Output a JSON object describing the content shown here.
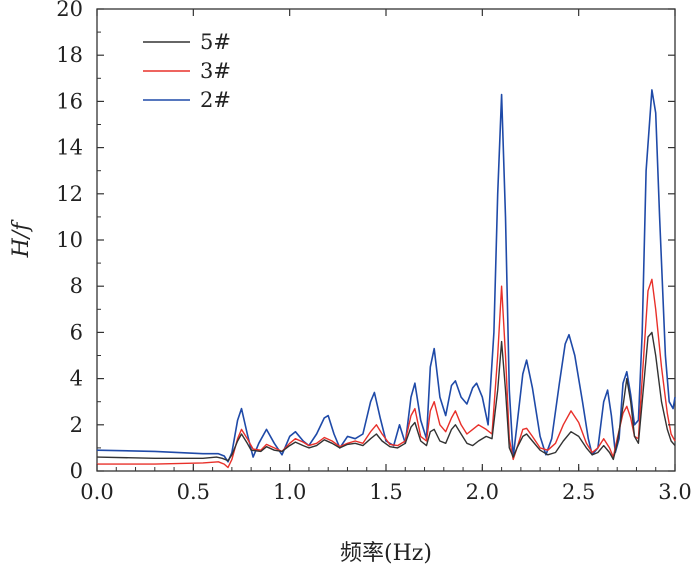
{
  "chart_data": {
    "type": "line",
    "xlabel": "频率(Hz)",
    "ylabel": "H/f",
    "xlim": [
      0,
      3.0
    ],
    "ylim": [
      0,
      20
    ],
    "xticks": [
      "0.0",
      "0.5",
      "1.0",
      "1.5",
      "2.0",
      "2.5",
      "3.0"
    ],
    "yticks": [
      "0",
      "2",
      "4",
      "6",
      "8",
      "10",
      "12",
      "14",
      "16",
      "18",
      "20"
    ],
    "grid": false,
    "legend_position": "top-left",
    "series": [
      {
        "name": "5#",
        "color": "#333333",
        "points": [
          [
            0.0,
            0.6
          ],
          [
            0.3,
            0.55
          ],
          [
            0.55,
            0.55
          ],
          [
            0.62,
            0.6
          ],
          [
            0.65,
            0.55
          ],
          [
            0.68,
            0.45
          ],
          [
            0.7,
            0.7
          ],
          [
            0.73,
            1.3
          ],
          [
            0.75,
            1.6
          ],
          [
            0.78,
            1.2
          ],
          [
            0.8,
            0.9
          ],
          [
            0.85,
            0.85
          ],
          [
            0.88,
            1.05
          ],
          [
            0.92,
            0.9
          ],
          [
            0.96,
            0.85
          ],
          [
            1.0,
            1.1
          ],
          [
            1.03,
            1.25
          ],
          [
            1.07,
            1.1
          ],
          [
            1.1,
            1.0
          ],
          [
            1.14,
            1.1
          ],
          [
            1.18,
            1.35
          ],
          [
            1.22,
            1.2
          ],
          [
            1.26,
            1.0
          ],
          [
            1.3,
            1.15
          ],
          [
            1.34,
            1.2
          ],
          [
            1.38,
            1.1
          ],
          [
            1.42,
            1.4
          ],
          [
            1.45,
            1.6
          ],
          [
            1.48,
            1.3
          ],
          [
            1.52,
            1.05
          ],
          [
            1.56,
            1.0
          ],
          [
            1.6,
            1.2
          ],
          [
            1.63,
            1.9
          ],
          [
            1.65,
            2.1
          ],
          [
            1.68,
            1.3
          ],
          [
            1.71,
            1.1
          ],
          [
            1.73,
            1.7
          ],
          [
            1.75,
            1.8
          ],
          [
            1.78,
            1.3
          ],
          [
            1.81,
            1.2
          ],
          [
            1.84,
            1.8
          ],
          [
            1.86,
            2.0
          ],
          [
            1.89,
            1.6
          ],
          [
            1.92,
            1.2
          ],
          [
            1.95,
            1.1
          ],
          [
            1.98,
            1.3
          ],
          [
            2.02,
            1.5
          ],
          [
            2.05,
            1.4
          ],
          [
            2.08,
            3.5
          ],
          [
            2.1,
            5.6
          ],
          [
            2.12,
            3.5
          ],
          [
            2.14,
            1.0
          ],
          [
            2.16,
            0.6
          ],
          [
            2.18,
            1.0
          ],
          [
            2.21,
            1.5
          ],
          [
            2.23,
            1.6
          ],
          [
            2.26,
            1.3
          ],
          [
            2.3,
            0.9
          ],
          [
            2.34,
            0.7
          ],
          [
            2.38,
            0.8
          ],
          [
            2.42,
            1.3
          ],
          [
            2.46,
            1.7
          ],
          [
            2.5,
            1.5
          ],
          [
            2.54,
            1.0
          ],
          [
            2.57,
            0.7
          ],
          [
            2.6,
            0.8
          ],
          [
            2.63,
            1.1
          ],
          [
            2.66,
            0.8
          ],
          [
            2.68,
            0.5
          ],
          [
            2.7,
            1.2
          ],
          [
            2.73,
            2.8
          ],
          [
            2.75,
            4.0
          ],
          [
            2.77,
            3.0
          ],
          [
            2.79,
            1.5
          ],
          [
            2.81,
            1.2
          ],
          [
            2.83,
            3.0
          ],
          [
            2.86,
            5.8
          ],
          [
            2.88,
            6.0
          ],
          [
            2.9,
            5.0
          ],
          [
            2.93,
            3.0
          ],
          [
            2.96,
            1.8
          ],
          [
            2.98,
            1.3
          ],
          [
            3.0,
            1.1
          ]
        ]
      },
      {
        "name": "3#",
        "color": "#e8302a",
        "points": [
          [
            0.0,
            0.3
          ],
          [
            0.3,
            0.3
          ],
          [
            0.55,
            0.35
          ],
          [
            0.63,
            0.4
          ],
          [
            0.66,
            0.3
          ],
          [
            0.68,
            0.15
          ],
          [
            0.7,
            0.5
          ],
          [
            0.73,
            1.4
          ],
          [
            0.75,
            1.8
          ],
          [
            0.78,
            1.4
          ],
          [
            0.81,
            0.95
          ],
          [
            0.85,
            0.9
          ],
          [
            0.88,
            1.15
          ],
          [
            0.92,
            1.0
          ],
          [
            0.96,
            0.85
          ],
          [
            1.0,
            1.2
          ],
          [
            1.03,
            1.4
          ],
          [
            1.07,
            1.25
          ],
          [
            1.1,
            1.1
          ],
          [
            1.14,
            1.2
          ],
          [
            1.18,
            1.45
          ],
          [
            1.22,
            1.3
          ],
          [
            1.26,
            1.05
          ],
          [
            1.3,
            1.2
          ],
          [
            1.34,
            1.3
          ],
          [
            1.38,
            1.2
          ],
          [
            1.42,
            1.7
          ],
          [
            1.45,
            2.0
          ],
          [
            1.48,
            1.6
          ],
          [
            1.52,
            1.15
          ],
          [
            1.56,
            1.1
          ],
          [
            1.6,
            1.3
          ],
          [
            1.63,
            2.4
          ],
          [
            1.65,
            2.7
          ],
          [
            1.68,
            1.5
          ],
          [
            1.71,
            1.3
          ],
          [
            1.73,
            2.6
          ],
          [
            1.75,
            3.0
          ],
          [
            1.78,
            2.0
          ],
          [
            1.81,
            1.7
          ],
          [
            1.84,
            2.3
          ],
          [
            1.86,
            2.6
          ],
          [
            1.89,
            2.0
          ],
          [
            1.92,
            1.6
          ],
          [
            1.95,
            1.8
          ],
          [
            1.98,
            2.0
          ],
          [
            2.02,
            1.8
          ],
          [
            2.05,
            1.6
          ],
          [
            2.08,
            5.0
          ],
          [
            2.1,
            8.0
          ],
          [
            2.12,
            5.0
          ],
          [
            2.14,
            1.4
          ],
          [
            2.16,
            0.5
          ],
          [
            2.18,
            1.0
          ],
          [
            2.21,
            1.8
          ],
          [
            2.23,
            1.85
          ],
          [
            2.26,
            1.5
          ],
          [
            2.3,
            1.0
          ],
          [
            2.34,
            0.9
          ],
          [
            2.38,
            1.2
          ],
          [
            2.42,
            2.0
          ],
          [
            2.46,
            2.6
          ],
          [
            2.5,
            2.1
          ],
          [
            2.54,
            1.2
          ],
          [
            2.57,
            0.8
          ],
          [
            2.6,
            1.0
          ],
          [
            2.63,
            1.4
          ],
          [
            2.66,
            1.0
          ],
          [
            2.68,
            0.6
          ],
          [
            2.7,
            1.4
          ],
          [
            2.73,
            2.5
          ],
          [
            2.75,
            2.8
          ],
          [
            2.77,
            2.3
          ],
          [
            2.79,
            1.5
          ],
          [
            2.81,
            1.4
          ],
          [
            2.83,
            4.0
          ],
          [
            2.86,
            7.8
          ],
          [
            2.88,
            8.3
          ],
          [
            2.9,
            7.0
          ],
          [
            2.93,
            4.5
          ],
          [
            2.96,
            2.5
          ],
          [
            2.98,
            1.6
          ],
          [
            3.0,
            1.3
          ]
        ]
      },
      {
        "name": "2#",
        "color": "#1f4aa8",
        "points": [
          [
            0.0,
            0.9
          ],
          [
            0.3,
            0.85
          ],
          [
            0.55,
            0.75
          ],
          [
            0.63,
            0.75
          ],
          [
            0.66,
            0.65
          ],
          [
            0.68,
            0.4
          ],
          [
            0.7,
            0.8
          ],
          [
            0.73,
            2.2
          ],
          [
            0.75,
            2.7
          ],
          [
            0.78,
            1.6
          ],
          [
            0.81,
            0.6
          ],
          [
            0.84,
            1.2
          ],
          [
            0.88,
            1.8
          ],
          [
            0.92,
            1.2
          ],
          [
            0.96,
            0.7
          ],
          [
            1.0,
            1.5
          ],
          [
            1.03,
            1.7
          ],
          [
            1.07,
            1.3
          ],
          [
            1.1,
            1.1
          ],
          [
            1.14,
            1.6
          ],
          [
            1.18,
            2.3
          ],
          [
            1.2,
            2.4
          ],
          [
            1.23,
            1.6
          ],
          [
            1.26,
            1.0
          ],
          [
            1.3,
            1.5
          ],
          [
            1.34,
            1.4
          ],
          [
            1.38,
            1.6
          ],
          [
            1.42,
            3.0
          ],
          [
            1.44,
            3.4
          ],
          [
            1.47,
            2.3
          ],
          [
            1.5,
            1.3
          ],
          [
            1.54,
            1.1
          ],
          [
            1.57,
            2.0
          ],
          [
            1.6,
            1.2
          ],
          [
            1.63,
            3.2
          ],
          [
            1.65,
            3.8
          ],
          [
            1.68,
            2.2
          ],
          [
            1.71,
            1.4
          ],
          [
            1.73,
            4.5
          ],
          [
            1.75,
            5.3
          ],
          [
            1.78,
            3.2
          ],
          [
            1.81,
            2.4
          ],
          [
            1.84,
            3.7
          ],
          [
            1.86,
            3.9
          ],
          [
            1.89,
            3.2
          ],
          [
            1.92,
            2.9
          ],
          [
            1.95,
            3.6
          ],
          [
            1.97,
            3.8
          ],
          [
            2.0,
            3.2
          ],
          [
            2.03,
            2.0
          ],
          [
            2.06,
            6.0
          ],
          [
            2.08,
            12.0
          ],
          [
            2.1,
            16.3
          ],
          [
            2.12,
            11.0
          ],
          [
            2.14,
            3.5
          ],
          [
            2.16,
            0.6
          ],
          [
            2.18,
            2.0
          ],
          [
            2.21,
            4.2
          ],
          [
            2.23,
            4.8
          ],
          [
            2.26,
            3.6
          ],
          [
            2.3,
            1.5
          ],
          [
            2.33,
            0.7
          ],
          [
            2.36,
            1.4
          ],
          [
            2.4,
            3.8
          ],
          [
            2.43,
            5.5
          ],
          [
            2.45,
            5.9
          ],
          [
            2.48,
            5.0
          ],
          [
            2.52,
            3.0
          ],
          [
            2.55,
            1.4
          ],
          [
            2.57,
            0.7
          ],
          [
            2.6,
            1.0
          ],
          [
            2.63,
            3.0
          ],
          [
            2.65,
            3.5
          ],
          [
            2.67,
            2.4
          ],
          [
            2.69,
            0.8
          ],
          [
            2.71,
            1.4
          ],
          [
            2.73,
            3.8
          ],
          [
            2.75,
            4.3
          ],
          [
            2.77,
            3.3
          ],
          [
            2.79,
            2.0
          ],
          [
            2.81,
            2.2
          ],
          [
            2.83,
            6.0
          ],
          [
            2.85,
            13.0
          ],
          [
            2.88,
            16.5
          ],
          [
            2.9,
            15.5
          ],
          [
            2.92,
            11.0
          ],
          [
            2.95,
            5.0
          ],
          [
            2.97,
            3.0
          ],
          [
            2.99,
            2.7
          ],
          [
            3.0,
            3.2
          ]
        ]
      }
    ]
  }
}
